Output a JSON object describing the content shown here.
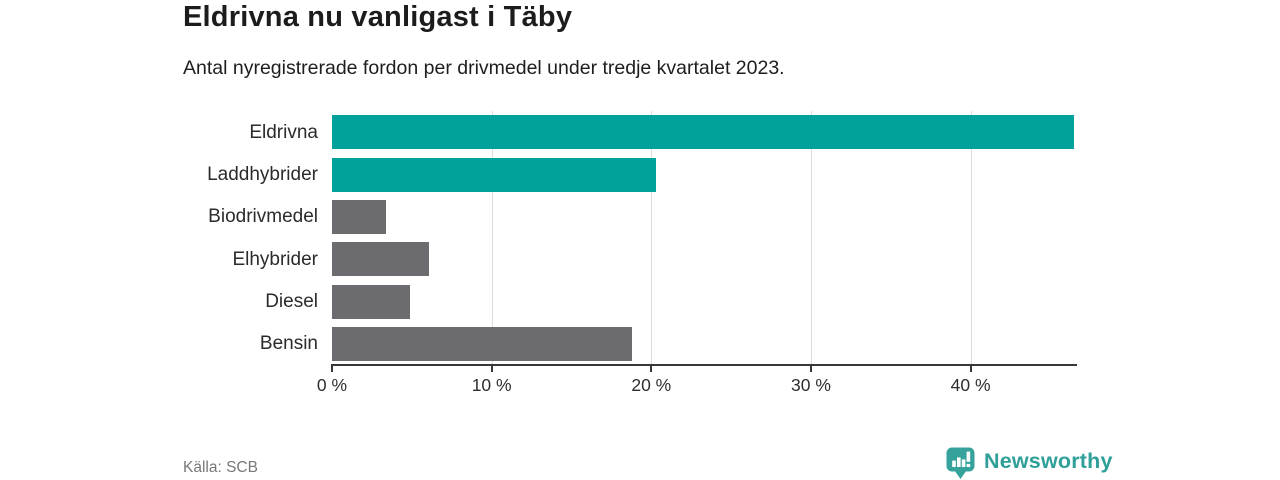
{
  "header": {
    "title": "Eldrivna nu vanligast i Täby",
    "subtitle": "Antal nyregistrerade fordon per drivmedel under tredje kvartalet 2023."
  },
  "chart_data": {
    "type": "bar",
    "orientation": "horizontal",
    "title": "Eldrivna nu vanligast i Täby",
    "subtitle": "Antal nyregistrerade fordon per drivmedel under tredje kvartalet 2023.",
    "categories": [
      "Eldrivna",
      "Laddhybrider",
      "Biodrivmedel",
      "Elhybrider",
      "Diesel",
      "Bensin"
    ],
    "values": [
      46.5,
      20.3,
      3.4,
      6.1,
      4.9,
      18.8
    ],
    "unit": "%",
    "xlim": [
      0,
      46.6
    ],
    "x_tick_values": [
      0,
      10,
      20,
      30,
      40
    ],
    "x_tick_labels": [
      "0 %",
      "10 %",
      "20 %",
      "30 %",
      "40 %"
    ],
    "grid": "vertical-light",
    "bar_colors": [
      "#00a29b",
      "#00a29b",
      "#6b6b70",
      "#6b6b70",
      "#6b6b70",
      "#6b6b70"
    ],
    "highlight_color": "#00a29b",
    "default_color": "#6b6b70"
  },
  "footer": {
    "source": "Källa: SCB",
    "brand": "Newsworthy"
  },
  "colors": {
    "teal": "#00a29b",
    "gray": "#6b6b70",
    "axis": "#383838",
    "gridline": "#dcdcdc",
    "brand_teal": "#2f9f99"
  },
  "icons": {
    "brand_logo": "newsworthy-chart-bubble-icon"
  }
}
